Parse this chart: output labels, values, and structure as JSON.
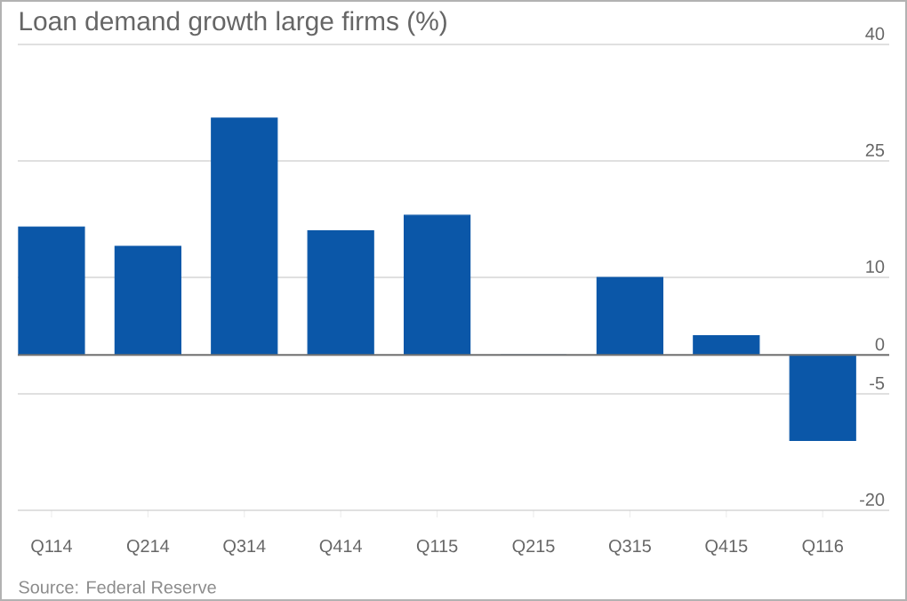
{
  "chart_data": {
    "type": "bar",
    "title": "Loan demand growth large firms (%)",
    "categories": [
      "Q114",
      "Q214",
      "Q314",
      "Q414",
      "Q115",
      "Q215",
      "Q315",
      "Q415",
      "Q116"
    ],
    "values": [
      16.5,
      14,
      30.5,
      16,
      18,
      0,
      10,
      2.5,
      -11
    ],
    "color": "#0b57a8",
    "ylim": [
      -20,
      40
    ],
    "yticks": [
      -20,
      -5,
      0,
      10,
      25,
      40
    ],
    "grid": "y",
    "annotations": [
      "Source: Federal Reserve"
    ]
  }
}
